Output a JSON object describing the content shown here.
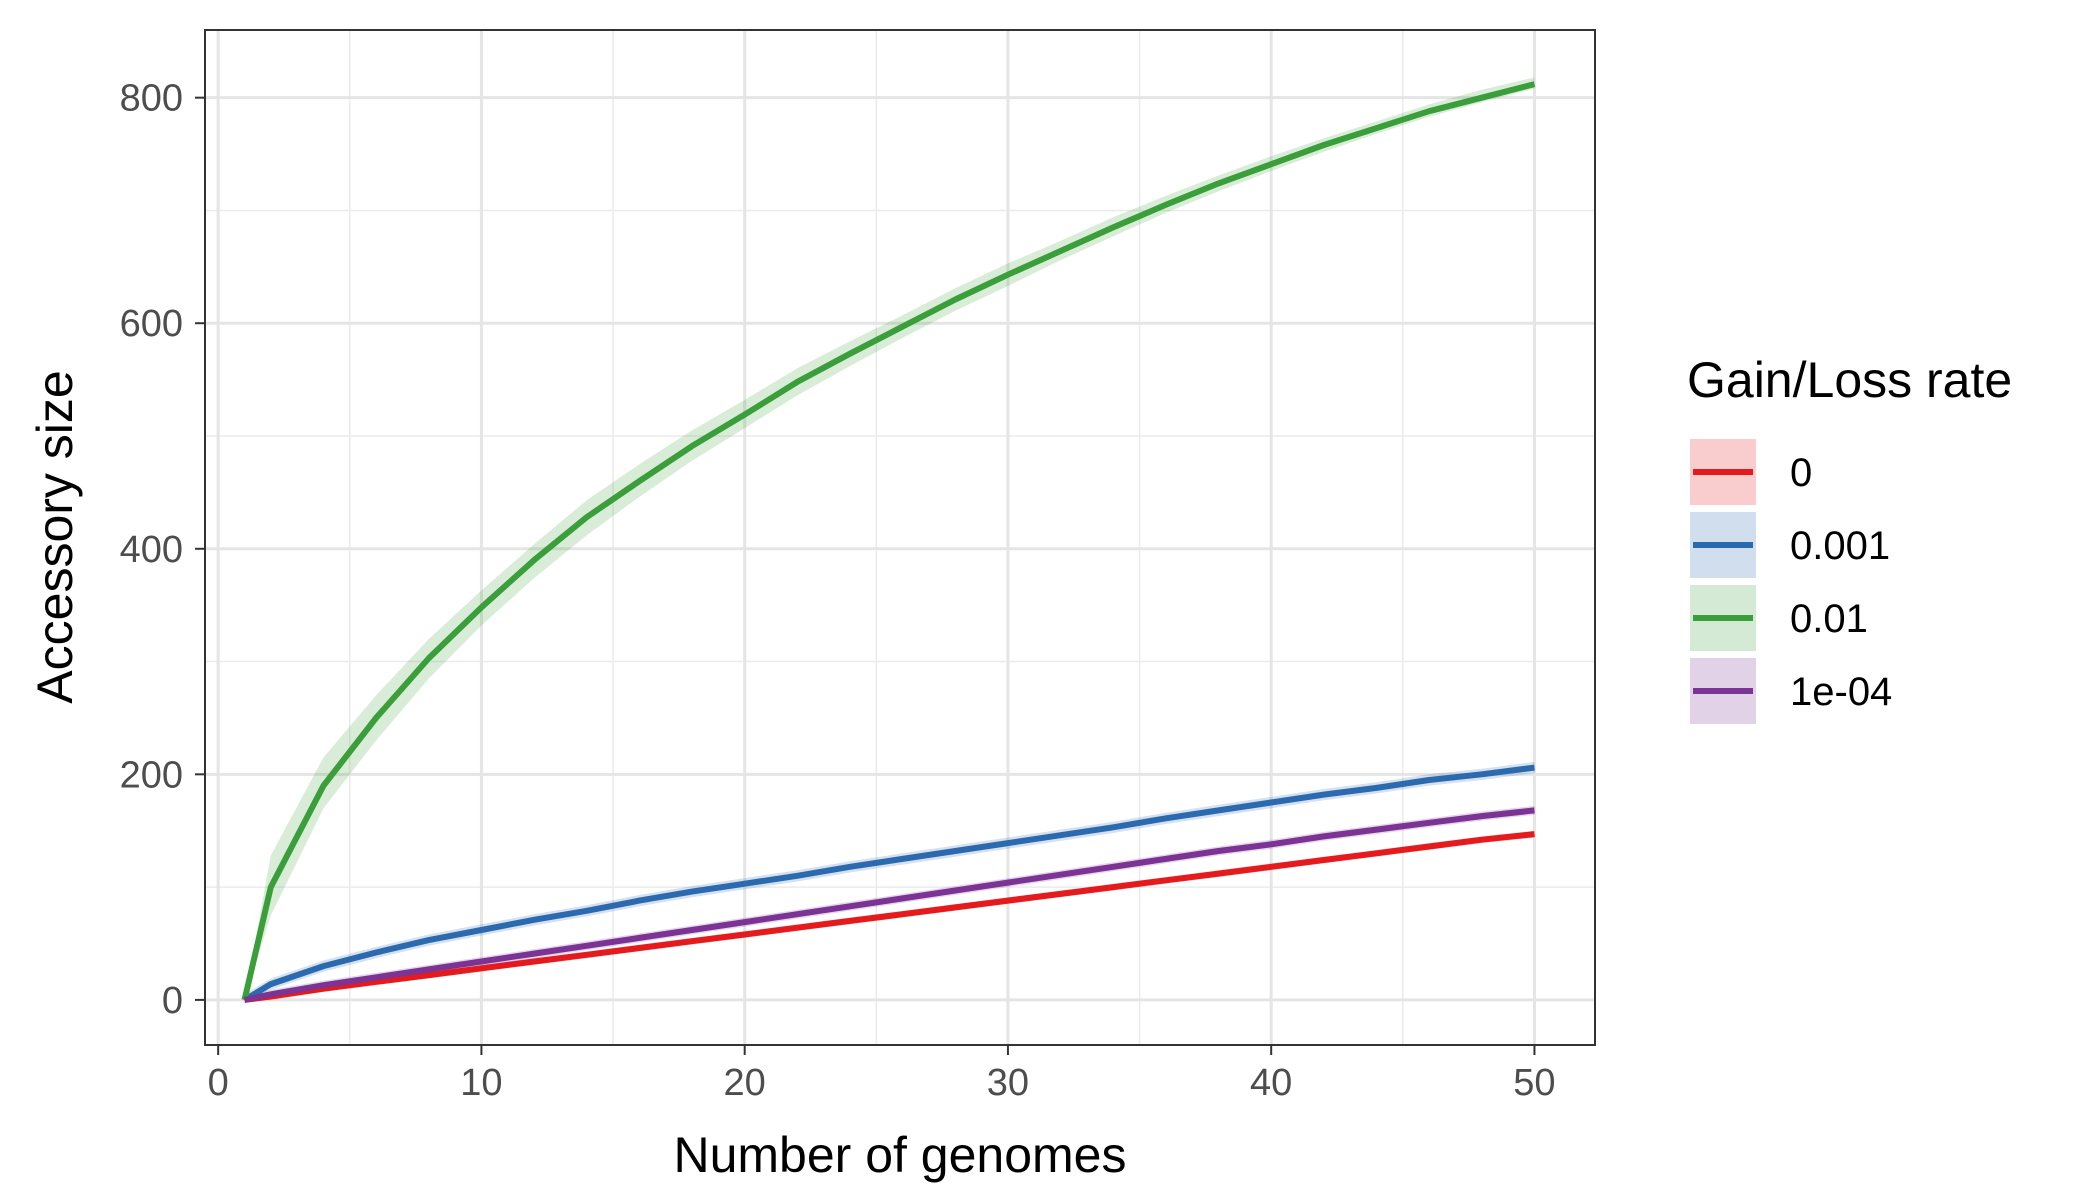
{
  "chart_data": {
    "type": "line",
    "xlabel": "Number of genomes",
    "ylabel": "Accessory size",
    "xlim": [
      -0.5,
      52.3
    ],
    "ylim": [
      -40,
      860
    ],
    "x_ticks": [
      0,
      10,
      20,
      30,
      40,
      50
    ],
    "y_ticks": [
      0,
      200,
      400,
      600,
      800
    ],
    "grid": true,
    "legend": {
      "title": "Gain/Loss rate",
      "placement": "right"
    },
    "x": [
      1,
      2,
      4,
      6,
      8,
      10,
      12,
      14,
      16,
      18,
      20,
      22,
      24,
      26,
      28,
      30,
      32,
      34,
      36,
      38,
      40,
      42,
      44,
      46,
      48,
      50
    ],
    "series": [
      {
        "name": "0",
        "color": "#E41A1C",
        "fill": "#F8C9CC",
        "values": [
          0,
          3,
          10,
          16,
          22,
          28,
          34,
          40,
          46,
          52,
          58,
          64,
          70,
          76,
          82,
          88,
          94,
          100,
          106,
          112,
          118,
          124,
          130,
          136,
          142,
          147
        ],
        "band": 3
      },
      {
        "name": "0.001",
        "color": "#2C6AAF",
        "fill": "#C9D9EB",
        "values": [
          0,
          14,
          30,
          42,
          53,
          62,
          71,
          79,
          88,
          96,
          103,
          110,
          118,
          125,
          132,
          139,
          146,
          153,
          161,
          168,
          175,
          182,
          188,
          195,
          200,
          206
        ],
        "band": 5
      },
      {
        "name": "0.01",
        "color": "#3A9E3A",
        "fill": "#D1E8CE",
        "values": [
          0,
          100,
          190,
          250,
          303,
          348,
          390,
          428,
          460,
          491,
          519,
          548,
          573,
          597,
          621,
          643,
          664,
          685,
          705,
          724,
          741,
          758,
          773,
          788,
          800,
          812
        ],
        "band_lower": [
          0,
          75,
          170,
          230,
          285,
          332,
          374,
          412,
          446,
          478,
          507,
          536,
          562,
          587,
          611,
          633,
          656,
          677,
          698,
          717,
          735,
          752,
          768,
          783,
          796,
          808
        ],
        "band_upper": [
          0,
          128,
          215,
          270,
          320,
          363,
          404,
          443,
          475,
          505,
          532,
          560,
          584,
          607,
          631,
          653,
          673,
          694,
          713,
          731,
          748,
          764,
          779,
          794,
          807,
          818
        ]
      },
      {
        "name": "1e-04",
        "color": "#7B3394",
        "fill": "#E0CFE5",
        "values": [
          0,
          5,
          13,
          20,
          27,
          34,
          41,
          48,
          55,
          62,
          69,
          76,
          83,
          90,
          97,
          104,
          111,
          118,
          125,
          132,
          138,
          145,
          151,
          157,
          163,
          168
        ],
        "band": 4
      }
    ]
  }
}
